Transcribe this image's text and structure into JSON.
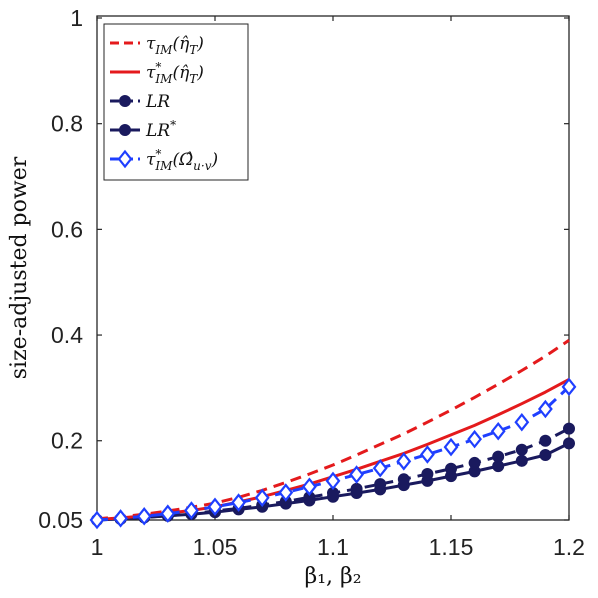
{
  "chart_data": {
    "type": "line",
    "title": "",
    "xlabel": "β₁, β₂",
    "ylabel": "size-adjusted power",
    "xlim": [
      1,
      1.2
    ],
    "ylim": [
      0.05,
      1
    ],
    "x_ticks": [
      "1",
      "1.05",
      "1.1",
      "1.15",
      "1.2"
    ],
    "y_ticks": [
      "0.05",
      "0.2",
      "0.4",
      "0.6",
      "0.8",
      "1"
    ],
    "x_tick_values": [
      1,
      1.05,
      1.1,
      1.15,
      1.2
    ],
    "y_tick_values": [
      0.05,
      0.2,
      0.4,
      0.6,
      0.8,
      1
    ],
    "grid": false,
    "legend_position": "top-left",
    "x": [
      1,
      1.01,
      1.02,
      1.03,
      1.04,
      1.05,
      1.06,
      1.07,
      1.08,
      1.09,
      1.1,
      1.11,
      1.12,
      1.13,
      1.14,
      1.15,
      1.16,
      1.17,
      1.18,
      1.19,
      1.2
    ],
    "series": [
      {
        "name": "τ_IM(η̂_T)",
        "color": "#e41a1c",
        "style": "dashed",
        "marker": "none",
        "values": [
          0.052,
          0.056,
          0.061,
          0.067,
          0.074,
          0.082,
          0.093,
          0.106,
          0.121,
          0.137,
          0.154,
          0.173,
          0.193,
          0.213,
          0.235,
          0.258,
          0.282,
          0.307,
          0.333,
          0.36,
          0.39
        ]
      },
      {
        "name": "τ*_IM(η̂_T)",
        "color": "#e41a1c",
        "style": "solid",
        "marker": "none",
        "values": [
          0.051,
          0.054,
          0.058,
          0.063,
          0.068,
          0.075,
          0.084,
          0.094,
          0.106,
          0.118,
          0.132,
          0.146,
          0.161,
          0.176,
          0.193,
          0.211,
          0.229,
          0.249,
          0.27,
          0.292,
          0.316
        ]
      },
      {
        "name": "LR",
        "color": "#1a1a5e",
        "style": "dashed",
        "marker": "circle",
        "values": [
          0.05,
          0.052,
          0.055,
          0.058,
          0.062,
          0.067,
          0.072,
          0.078,
          0.085,
          0.093,
          0.101,
          0.109,
          0.118,
          0.127,
          0.137,
          0.147,
          0.158,
          0.17,
          0.183,
          0.2,
          0.223
        ]
      },
      {
        "name": "LR*",
        "color": "#1a1a5e",
        "style": "solid",
        "marker": "circle",
        "values": [
          0.05,
          0.052,
          0.055,
          0.058,
          0.061,
          0.065,
          0.07,
          0.075,
          0.081,
          0.087,
          0.094,
          0.101,
          0.108,
          0.116,
          0.124,
          0.133,
          0.142,
          0.152,
          0.162,
          0.173,
          0.195
        ]
      },
      {
        "name": "τ*_IM(Ω̂_u·v)",
        "color": "#1f3fff",
        "style": "dashed",
        "marker": "diamond",
        "values": [
          0.05,
          0.053,
          0.057,
          0.062,
          0.068,
          0.075,
          0.083,
          0.092,
          0.102,
          0.113,
          0.124,
          0.136,
          0.148,
          0.161,
          0.174,
          0.188,
          0.203,
          0.218,
          0.235,
          0.26,
          0.302
        ]
      }
    ]
  },
  "legend": {
    "items": [
      {
        "prefix": "τ",
        "sup": "",
        "sub": "IM",
        "arg": "(η̂",
        "argsub": "T",
        "close": ")"
      },
      {
        "prefix": "τ",
        "sup": "*",
        "sub": "IM",
        "arg": "(η̂",
        "argsub": "T",
        "close": ")"
      },
      {
        "prefix": "LR",
        "sup": "",
        "sub": "",
        "arg": "",
        "argsub": "",
        "close": ""
      },
      {
        "prefix": "LR",
        "sup": "*",
        "sub": "",
        "arg": "",
        "argsub": "",
        "close": ""
      },
      {
        "prefix": "τ",
        "sup": "*",
        "sub": "IM",
        "arg": "(Ω̂",
        "argsub": "u·v",
        "close": ")"
      }
    ]
  }
}
